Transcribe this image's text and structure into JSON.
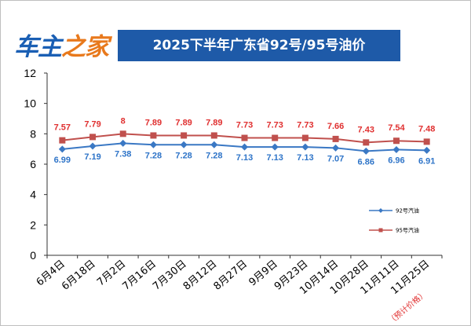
{
  "logo": {
    "part1": "车主",
    "part2": "之家"
  },
  "chart_data": {
    "type": "line",
    "title": "2025下半年广东省92号/95号油价",
    "categories": [
      "6月4日",
      "6月18日",
      "7月2日",
      "7月16日",
      "7月30日",
      "8月12日",
      "8月27日",
      "9月9日",
      "9月23日",
      "10月14日",
      "10月28日",
      "11月11日",
      "11月25日"
    ],
    "series": [
      {
        "name": "92号汽油",
        "color": "#3a78c4",
        "values": [
          6.99,
          7.19,
          7.38,
          7.28,
          7.28,
          7.28,
          7.13,
          7.13,
          7.13,
          7.07,
          6.86,
          6.96,
          6.91
        ],
        "labels": [
          "6.99",
          "7.19",
          "7.38",
          "7.28",
          "7.28",
          "7.28",
          "7.13",
          "7.13",
          "7.13",
          "7.07",
          "6.86",
          "6.96",
          "6.91"
        ]
      },
      {
        "name": "95号汽油",
        "color": "#c0504d",
        "values": [
          7.57,
          7.79,
          8,
          7.89,
          7.89,
          7.89,
          7.73,
          7.73,
          7.73,
          7.66,
          7.43,
          7.54,
          7.48
        ],
        "labels": [
          "7.57",
          "7.79",
          "8",
          "7.89",
          "7.89",
          "7.89",
          "7.73",
          "7.73",
          "7.73",
          "7.66",
          "7.43",
          "7.54",
          "7.48"
        ]
      }
    ],
    "ylim": [
      0,
      12
    ],
    "yticks": [
      0,
      2,
      4,
      6,
      8,
      10,
      12
    ],
    "grid": false,
    "legend": "right",
    "annotation": "（预计价格）"
  }
}
